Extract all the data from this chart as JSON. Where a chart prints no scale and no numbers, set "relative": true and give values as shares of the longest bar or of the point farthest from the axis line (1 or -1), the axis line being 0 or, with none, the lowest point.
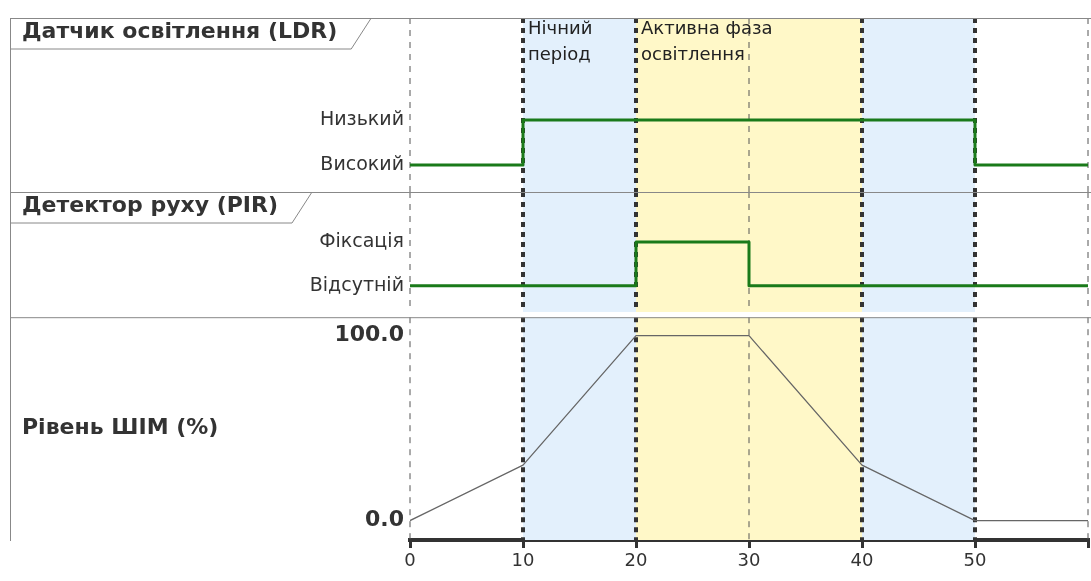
{
  "chart_data": [
    {
      "type": "step",
      "title": "Датчик освітлення (LDR)",
      "x": [
        0,
        10,
        50,
        60
      ],
      "values": [
        0,
        1,
        0,
        0
      ],
      "color": "#1a7a1a",
      "xlim": [
        0,
        60
      ],
      "relative": true,
      "annotations": [
        "Високий",
        "Низький"
      ],
      "bands": [
        {
          "axis": "x",
          "from": 10,
          "to": 20,
          "label": "Нічний період",
          "color": "#e3f0fc"
        },
        {
          "axis": "x",
          "from": 20,
          "to": 40,
          "label": "Активна фаза освітлення",
          "color": "#fff8c8"
        },
        {
          "axis": "x",
          "from": 40,
          "to": 50,
          "color": "#e3f0fc"
        }
      ],
      "ref_lines": [
        {
          "axis": "x",
          "value": 0,
          "line_style": "dashed",
          "color": "#555555"
        },
        {
          "axis": "x",
          "value": 30,
          "line_style": "dashed",
          "color": "#555555"
        },
        {
          "axis": "x",
          "value": 60,
          "line_style": "dashed",
          "color": "#555555"
        },
        {
          "axis": "x",
          "value": 10,
          "line_style": "dotted",
          "color": "#333333"
        },
        {
          "axis": "x",
          "value": 20,
          "line_style": "dotted",
          "color": "#333333"
        },
        {
          "axis": "x",
          "value": 40,
          "line_style": "dotted",
          "color": "#333333"
        },
        {
          "axis": "x",
          "value": 50,
          "line_style": "dotted",
          "color": "#333333"
        }
      ]
    },
    {
      "type": "step",
      "title": "Детектор руху (PIR)",
      "x": [
        0,
        20,
        30,
        60
      ],
      "values": [
        0,
        1,
        0,
        0
      ],
      "color": "#1a7a1a",
      "xlim": [
        0,
        60
      ],
      "relative": true,
      "annotations": [
        "Відсутній",
        "Фіксація"
      ],
      "bands": [
        {
          "axis": "x",
          "from": 10,
          "to": 20,
          "color": "#e3f0fc"
        },
        {
          "axis": "x",
          "from": 20,
          "to": 40,
          "color": "#fff8c8"
        },
        {
          "axis": "x",
          "from": 40,
          "to": 50,
          "color": "#e3f0fc"
        }
      ],
      "ref_lines": [
        {
          "axis": "x",
          "value": 0,
          "line_style": "dashed",
          "color": "#555555"
        },
        {
          "axis": "x",
          "value": 30,
          "line_style": "dashed",
          "color": "#555555"
        },
        {
          "axis": "x",
          "value": 60,
          "line_style": "dashed",
          "color": "#555555"
        },
        {
          "axis": "x",
          "value": 10,
          "line_style": "dotted",
          "color": "#333333"
        },
        {
          "axis": "x",
          "value": 20,
          "line_style": "dotted",
          "color": "#333333"
        },
        {
          "axis": "x",
          "value": 40,
          "line_style": "dotted",
          "color": "#333333"
        },
        {
          "axis": "x",
          "value": 50,
          "line_style": "dotted",
          "color": "#333333"
        }
      ]
    },
    {
      "type": "line",
      "ylabel": "Рівень ШІМ (%)",
      "x": [
        0,
        10,
        20,
        30,
        40,
        50,
        60
      ],
      "values": [
        0,
        30,
        100,
        100,
        30,
        0,
        0
      ],
      "color": "#666666",
      "xlim": [
        0,
        60
      ],
      "xticks": [
        0,
        10,
        20,
        30,
        40,
        50,
        {
          "value": 60,
          "label": null
        }
      ],
      "ylim": [
        -10.5,
        110
      ],
      "yticks": [
        {
          "value": 0,
          "label": "0.0"
        },
        {
          "value": 100,
          "label": "100.0"
        }
      ],
      "bands": [
        {
          "axis": "x",
          "from": 10,
          "to": 20,
          "color": "#e3f0fc"
        },
        {
          "axis": "x",
          "from": 20,
          "to": 40,
          "color": "#fff8c8"
        },
        {
          "axis": "x",
          "from": 40,
          "to": 50,
          "color": "#e3f0fc"
        }
      ],
      "ref_lines": [
        {
          "axis": "x",
          "value": 0,
          "line_style": "dashed",
          "color": "#555555"
        },
        {
          "axis": "x",
          "value": 30,
          "line_style": "dashed",
          "color": "#555555"
        },
        {
          "axis": "x",
          "value": 60,
          "line_style": "dashed",
          "color": "#555555"
        },
        {
          "axis": "x",
          "value": 10,
          "line_style": "dotted",
          "color": "#333333"
        },
        {
          "axis": "x",
          "value": 20,
          "line_style": "dotted",
          "color": "#333333"
        },
        {
          "axis": "x",
          "value": 40,
          "line_style": "dotted",
          "color": "#333333"
        },
        {
          "axis": "x",
          "value": 50,
          "line_style": "dotted",
          "color": "#333333"
        }
      ]
    }
  ]
}
